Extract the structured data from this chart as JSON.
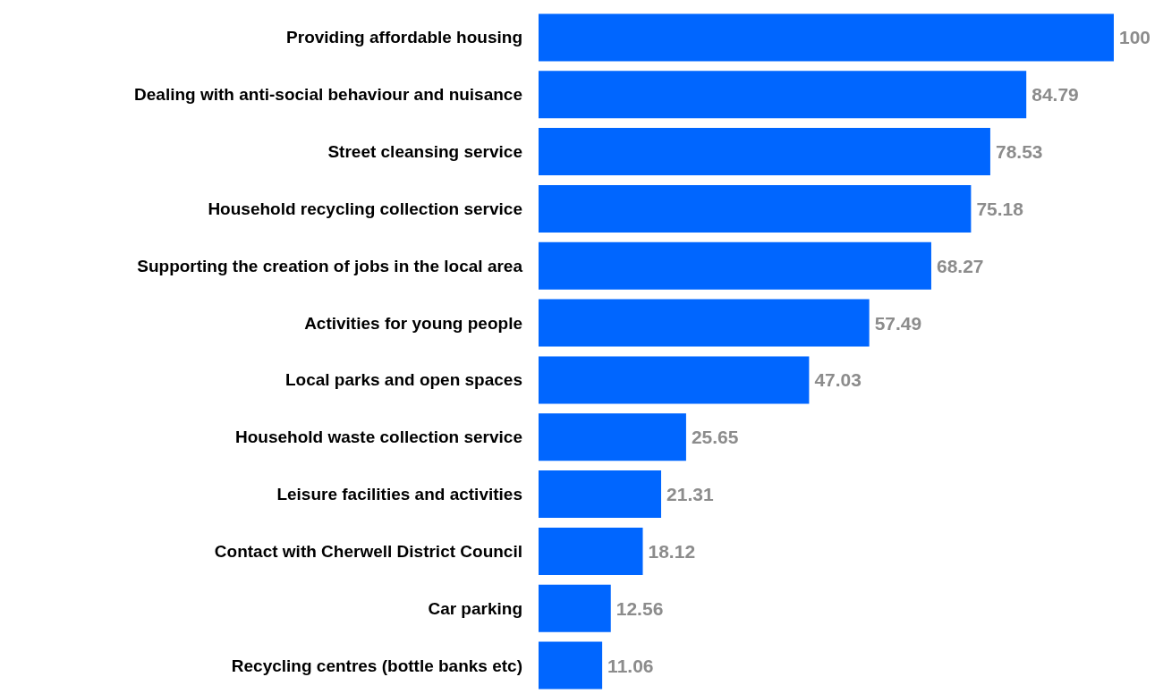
{
  "chart_data": {
    "type": "bar",
    "orientation": "horizontal",
    "categories": [
      "Providing affordable housing",
      "Dealing with anti-social behaviour and nuisance",
      "Street cleansing service",
      "Household recycling collection service",
      "Supporting the creation of jobs in the local area",
      "Activities for young people",
      "Local parks and open spaces",
      "Household waste collection service",
      "Leisure facilities and activities",
      "Contact with Cherwell District Council",
      "Car parking",
      "Recycling centres (bottle banks etc)"
    ],
    "values": [
      100,
      84.79,
      78.53,
      75.18,
      68.27,
      57.49,
      47.03,
      25.65,
      21.31,
      18.12,
      12.56,
      11.06
    ],
    "color": "#0066ff",
    "data_labels": true
  }
}
